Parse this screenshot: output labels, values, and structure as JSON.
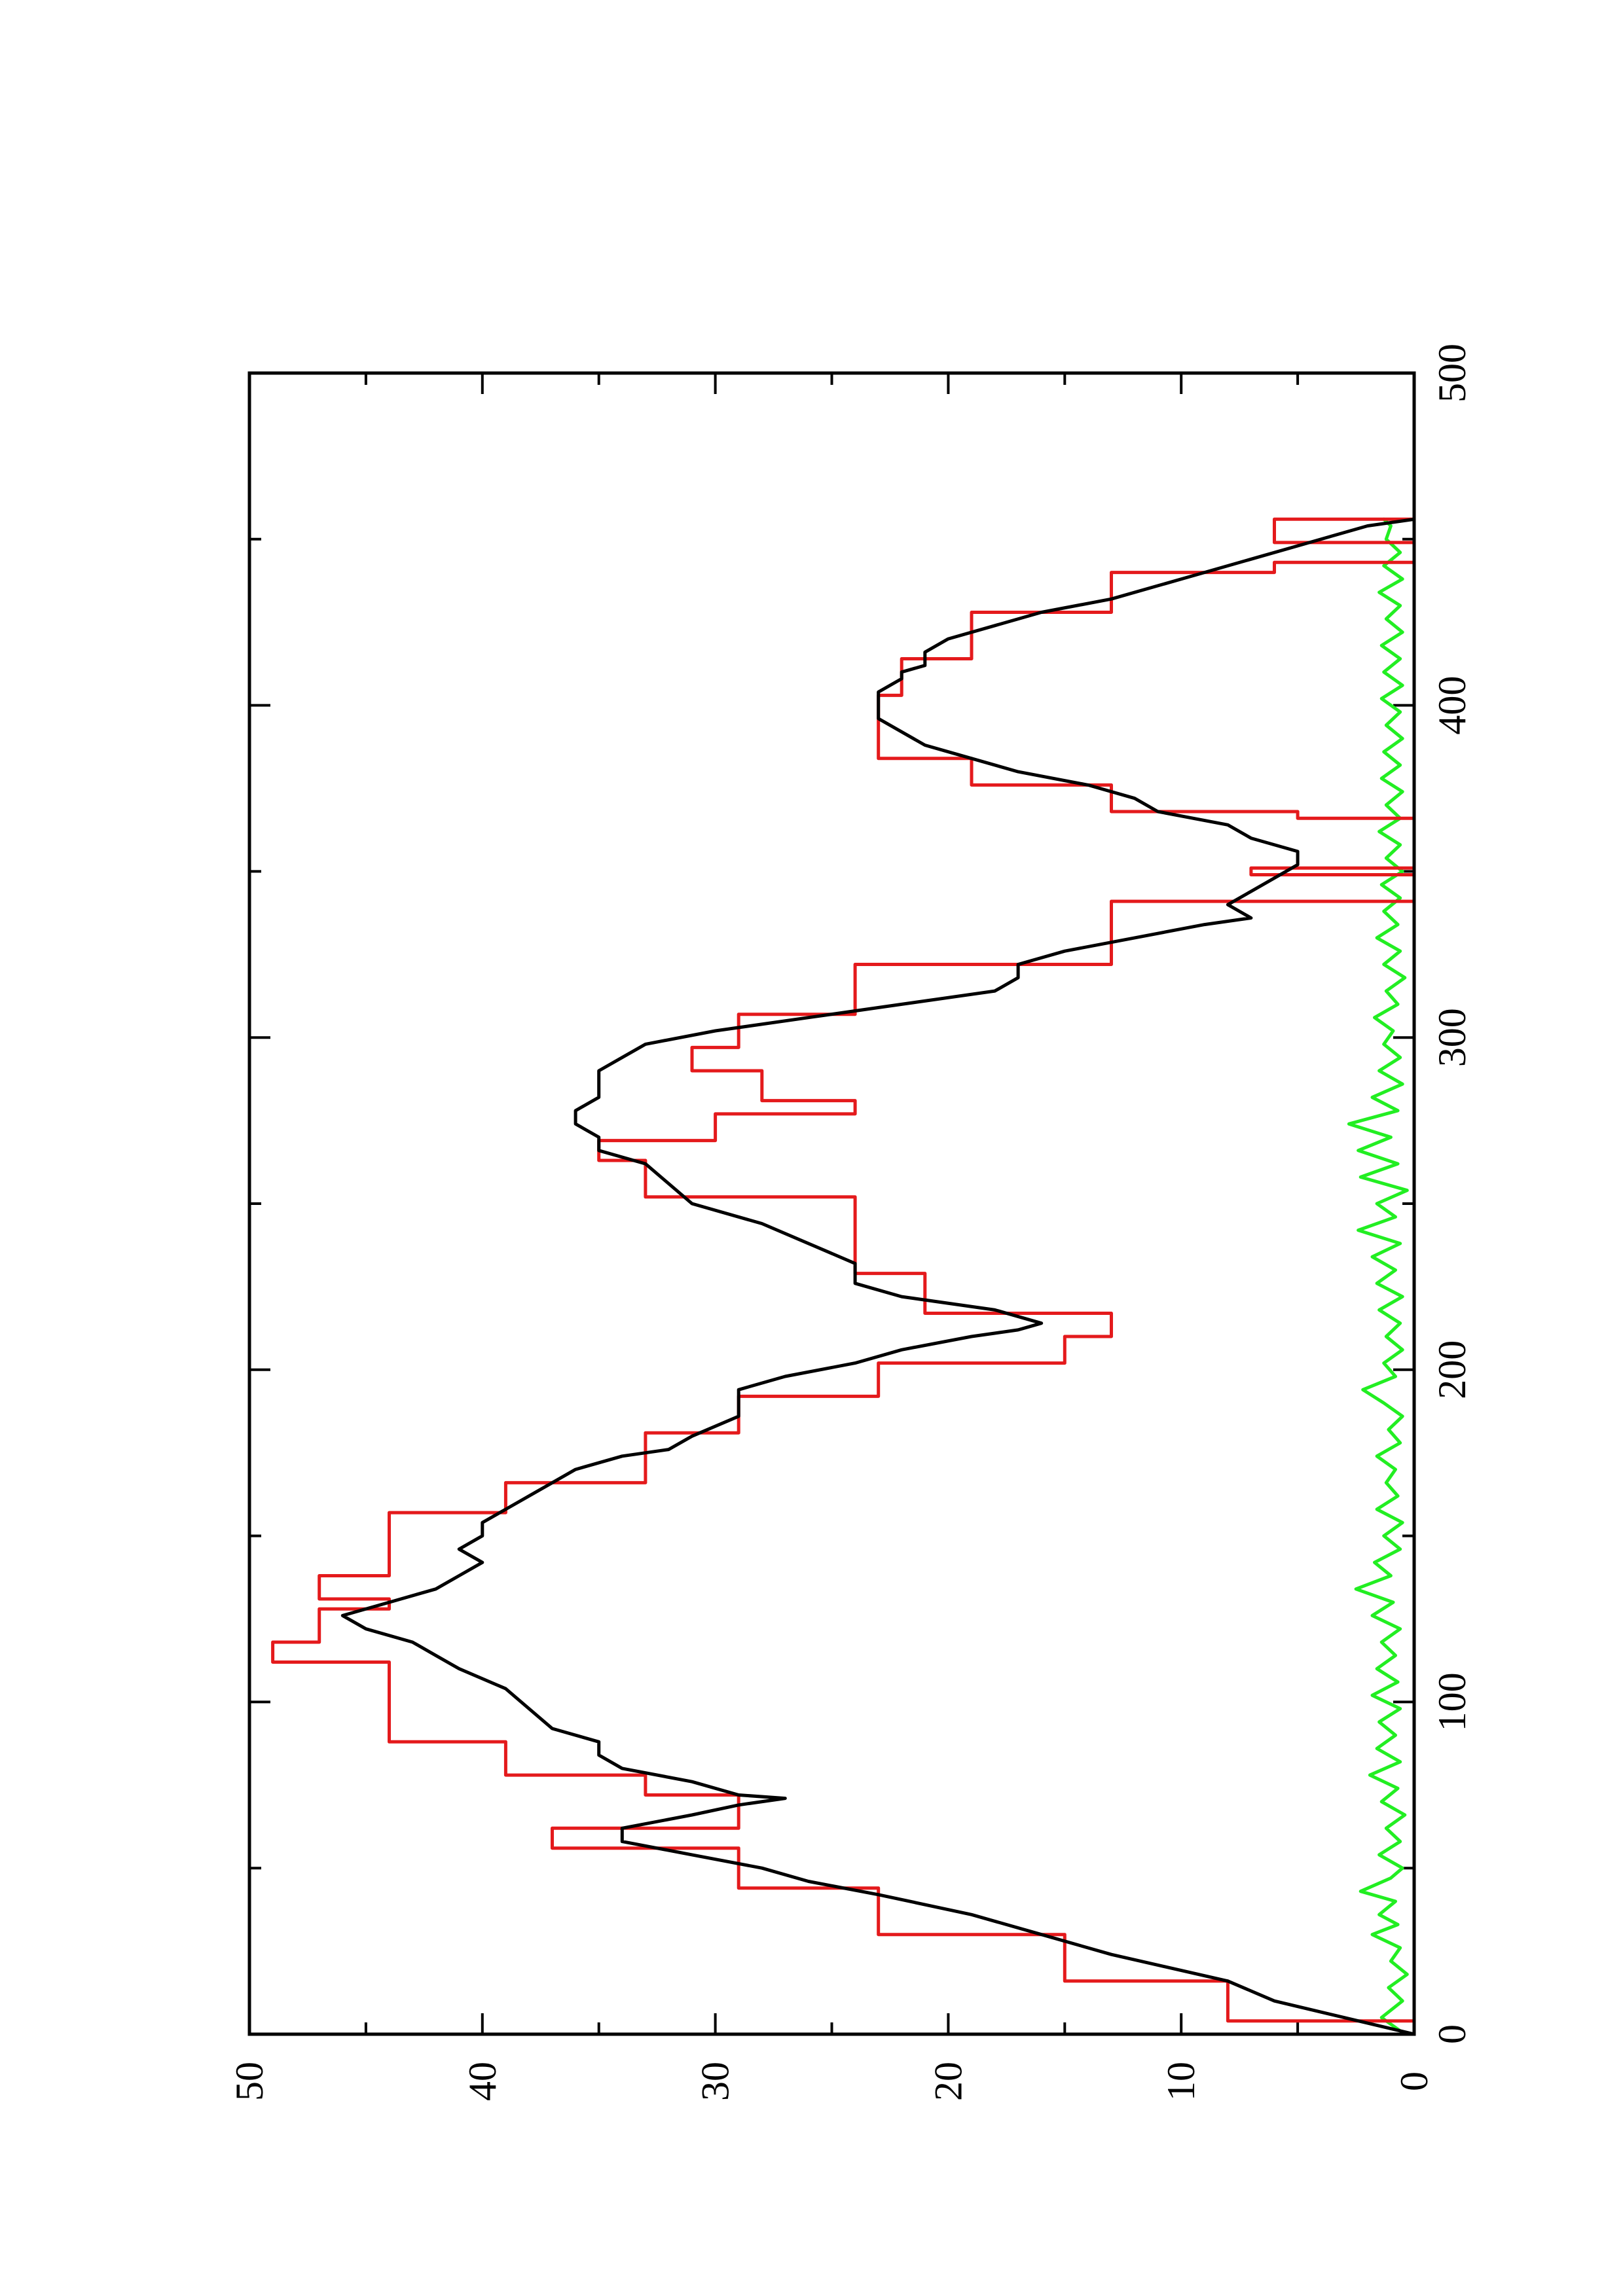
{
  "chart_data": {
    "type": "line",
    "orientation": "rotated-90-ccw",
    "title": "",
    "xlabel": "",
    "ylabel": "",
    "xlim": [
      0,
      500
    ],
    "ylim": [
      0,
      50
    ],
    "x_ticks": [
      0,
      100,
      200,
      300,
      400,
      500
    ],
    "y_ticks": [
      0,
      10,
      20,
      30,
      40,
      50
    ],
    "x_minor_step": 50,
    "y_minor_step": 5,
    "grid": false,
    "legend": "none",
    "series": [
      {
        "color": "#e41a1c",
        "style": "step",
        "points": [
          [
            0,
            0
          ],
          [
            4,
            0
          ],
          [
            4,
            8
          ],
          [
            16,
            8
          ],
          [
            16,
            15
          ],
          [
            30,
            15
          ],
          [
            30,
            23
          ],
          [
            44,
            23
          ],
          [
            44,
            29
          ],
          [
            56,
            29
          ],
          [
            56,
            37
          ],
          [
            62,
            37
          ],
          [
            62,
            29
          ],
          [
            72,
            29
          ],
          [
            72,
            33
          ],
          [
            78,
            33
          ],
          [
            78,
            39
          ],
          [
            88,
            39
          ],
          [
            88,
            44
          ],
          [
            112,
            44
          ],
          [
            112,
            49
          ],
          [
            118,
            49
          ],
          [
            118,
            47
          ],
          [
            128,
            47
          ],
          [
            128,
            44
          ],
          [
            131,
            44
          ],
          [
            131,
            47
          ],
          [
            138,
            47
          ],
          [
            138,
            44
          ],
          [
            157,
            44
          ],
          [
            157,
            39
          ],
          [
            166,
            39
          ],
          [
            166,
            33
          ],
          [
            181,
            33
          ],
          [
            181,
            29
          ],
          [
            192,
            29
          ],
          [
            192,
            23
          ],
          [
            202,
            23
          ],
          [
            202,
            15
          ],
          [
            210,
            15
          ],
          [
            210,
            13
          ],
          [
            217,
            13
          ],
          [
            217,
            21
          ],
          [
            229,
            21
          ],
          [
            229,
            24
          ],
          [
            252,
            24
          ],
          [
            252,
            33
          ],
          [
            263,
            33
          ],
          [
            263,
            35
          ],
          [
            269,
            35
          ],
          [
            269,
            30
          ],
          [
            277,
            30
          ],
          [
            277,
            24
          ],
          [
            281,
            24
          ],
          [
            281,
            28
          ],
          [
            290,
            28
          ],
          [
            290,
            31
          ],
          [
            297,
            31
          ],
          [
            297,
            29
          ],
          [
            307,
            29
          ],
          [
            307,
            24
          ],
          [
            322,
            24
          ],
          [
            322,
            13
          ],
          [
            341,
            13
          ],
          [
            341,
            0
          ],
          [
            349,
            0
          ],
          [
            349,
            7
          ],
          [
            351,
            7
          ],
          [
            351,
            0
          ],
          [
            366,
            0
          ],
          [
            366,
            5
          ],
          [
            368,
            5
          ],
          [
            368,
            13
          ],
          [
            376,
            13
          ],
          [
            376,
            19
          ],
          [
            384,
            19
          ],
          [
            384,
            23
          ],
          [
            403,
            23
          ],
          [
            403,
            22
          ],
          [
            414,
            22
          ],
          [
            414,
            19
          ],
          [
            428,
            19
          ],
          [
            428,
            13
          ],
          [
            440,
            13
          ],
          [
            440,
            6
          ],
          [
            443,
            6
          ],
          [
            443,
            0
          ],
          [
            449,
            0
          ],
          [
            449,
            6
          ],
          [
            456,
            6
          ],
          [
            456,
            0
          ]
        ]
      },
      {
        "color": "#000000",
        "style": "line",
        "points": [
          [
            0,
            0
          ],
          [
            10,
            6
          ],
          [
            16,
            8
          ],
          [
            24,
            13
          ],
          [
            30,
            16
          ],
          [
            36,
            19
          ],
          [
            42,
            23
          ],
          [
            46,
            26
          ],
          [
            50,
            28
          ],
          [
            54,
            31
          ],
          [
            58,
            34
          ],
          [
            62,
            34
          ],
          [
            66,
            31
          ],
          [
            69,
            29
          ],
          [
            71,
            27
          ],
          [
            72,
            29
          ],
          [
            76,
            31
          ],
          [
            80,
            34
          ],
          [
            84,
            35
          ],
          [
            88,
            35
          ],
          [
            92,
            37
          ],
          [
            98,
            38
          ],
          [
            104,
            39
          ],
          [
            110,
            41
          ],
          [
            114,
            42
          ],
          [
            118,
            43
          ],
          [
            122,
            45
          ],
          [
            126,
            46
          ],
          [
            130,
            44
          ],
          [
            134,
            42
          ],
          [
            138,
            41
          ],
          [
            142,
            40
          ],
          [
            146,
            41
          ],
          [
            150,
            40
          ],
          [
            154,
            40
          ],
          [
            158,
            39
          ],
          [
            162,
            38
          ],
          [
            166,
            37
          ],
          [
            170,
            36
          ],
          [
            174,
            34
          ],
          [
            176,
            32
          ],
          [
            180,
            31
          ],
          [
            186,
            29
          ],
          [
            190,
            29
          ],
          [
            194,
            29
          ],
          [
            198,
            27
          ],
          [
            202,
            24
          ],
          [
            206,
            22
          ],
          [
            210,
            19
          ],
          [
            212,
            17
          ],
          [
            214,
            16
          ],
          [
            218,
            18
          ],
          [
            222,
            22
          ],
          [
            226,
            24
          ],
          [
            232,
            24
          ],
          [
            238,
            26
          ],
          [
            244,
            28
          ],
          [
            250,
            31
          ],
          [
            256,
            32
          ],
          [
            262,
            33
          ],
          [
            266,
            35
          ],
          [
            270,
            35
          ],
          [
            274,
            36
          ],
          [
            278,
            36
          ],
          [
            282,
            35
          ],
          [
            286,
            35
          ],
          [
            290,
            35
          ],
          [
            294,
            34
          ],
          [
            298,
            33
          ],
          [
            302,
            30
          ],
          [
            306,
            26
          ],
          [
            310,
            22
          ],
          [
            314,
            18
          ],
          [
            318,
            17
          ],
          [
            322,
            17
          ],
          [
            326,
            15
          ],
          [
            330,
            12
          ],
          [
            334,
            9
          ],
          [
            336,
            7
          ],
          [
            340,
            8
          ],
          [
            344,
            7
          ],
          [
            348,
            6
          ],
          [
            352,
            5
          ],
          [
            356,
            5
          ],
          [
            360,
            7
          ],
          [
            364,
            8
          ],
          [
            368,
            11
          ],
          [
            372,
            12
          ],
          [
            376,
            14
          ],
          [
            380,
            17
          ],
          [
            384,
            19
          ],
          [
            388,
            21
          ],
          [
            392,
            22
          ],
          [
            396,
            23
          ],
          [
            400,
            23
          ],
          [
            404,
            23
          ],
          [
            408,
            22
          ],
          [
            410,
            22
          ],
          [
            412,
            21
          ],
          [
            416,
            21
          ],
          [
            420,
            20
          ],
          [
            424,
            18
          ],
          [
            428,
            16
          ],
          [
            432,
            13
          ],
          [
            436,
            11
          ],
          [
            440,
            9
          ],
          [
            444,
            7
          ],
          [
            448,
            5
          ],
          [
            452,
            3
          ],
          [
            454,
            2
          ],
          [
            456,
            0
          ]
        ]
      },
      {
        "color": "#22ee22",
        "style": "line",
        "points": [
          [
            0,
            0.4
          ],
          [
            5,
            1.4
          ],
          [
            10,
            0.5
          ],
          [
            14,
            1.1
          ],
          [
            18,
            0.3
          ],
          [
            22,
            1.0
          ],
          [
            26,
            0.6
          ],
          [
            30,
            1.8
          ],
          [
            33,
            0.7
          ],
          [
            36,
            1.5
          ],
          [
            40,
            0.8
          ],
          [
            43,
            2.3
          ],
          [
            47,
            1.0
          ],
          [
            50,
            0.5
          ],
          [
            54,
            1.5
          ],
          [
            58,
            0.6
          ],
          [
            62,
            1.2
          ],
          [
            66,
            0.4
          ],
          [
            70,
            1.4
          ],
          [
            74,
            0.7
          ],
          [
            78,
            1.9
          ],
          [
            82,
            0.6
          ],
          [
            86,
            1.6
          ],
          [
            90,
            0.8
          ],
          [
            94,
            1.5
          ],
          [
            98,
            0.6
          ],
          [
            102,
            1.8
          ],
          [
            106,
            0.7
          ],
          [
            110,
            1.6
          ],
          [
            114,
            0.8
          ],
          [
            118,
            1.4
          ],
          [
            122,
            0.6
          ],
          [
            126,
            1.8
          ],
          [
            130,
            0.9
          ],
          [
            134,
            2.5
          ],
          [
            138,
            1.0
          ],
          [
            142,
            1.7
          ],
          [
            146,
            0.6
          ],
          [
            150,
            1.3
          ],
          [
            154,
            0.5
          ],
          [
            158,
            1.6
          ],
          [
            162,
            0.7
          ],
          [
            166,
            1.2
          ],
          [
            170,
            0.8
          ],
          [
            174,
            1.6
          ],
          [
            178,
            0.6
          ],
          [
            182,
            1.1
          ],
          [
            186,
            0.5
          ],
          [
            190,
            1.3
          ],
          [
            194,
            2.2
          ],
          [
            198,
            0.8
          ],
          [
            202,
            1.3
          ],
          [
            206,
            0.5
          ],
          [
            210,
            1.2
          ],
          [
            214,
            0.6
          ],
          [
            218,
            1.5
          ],
          [
            222,
            0.5
          ],
          [
            226,
            1.6
          ],
          [
            230,
            0.8
          ],
          [
            234,
            1.8
          ],
          [
            238,
            0.6
          ],
          [
            242,
            2.4
          ],
          [
            246,
            0.8
          ],
          [
            250,
            1.6
          ],
          [
            254,
            0.3
          ],
          [
            258,
            2.3
          ],
          [
            262,
            0.7
          ],
          [
            266,
            2.4
          ],
          [
            270,
            1.0
          ],
          [
            274,
            2.8
          ],
          [
            278,
            0.7
          ],
          [
            282,
            1.8
          ],
          [
            286,
            0.5
          ],
          [
            290,
            1.5
          ],
          [
            294,
            0.6
          ],
          [
            298,
            1.3
          ],
          [
            302,
            0.9
          ],
          [
            306,
            1.7
          ],
          [
            310,
            0.7
          ],
          [
            314,
            1.2
          ],
          [
            318,
            0.4
          ],
          [
            322,
            1.3
          ],
          [
            326,
            0.6
          ],
          [
            330,
            1.6
          ],
          [
            334,
            0.7
          ],
          [
            338,
            1.3
          ],
          [
            342,
            0.6
          ],
          [
            346,
            1.4
          ],
          [
            350,
            0.5
          ],
          [
            354,
            1.2
          ],
          [
            358,
            0.6
          ],
          [
            362,
            1.5
          ],
          [
            366,
            0.6
          ],
          [
            370,
            1.2
          ],
          [
            374,
            0.5
          ],
          [
            378,
            1.4
          ],
          [
            382,
            0.6
          ],
          [
            386,
            1.3
          ],
          [
            390,
            0.5
          ],
          [
            394,
            1.2
          ],
          [
            398,
            0.6
          ],
          [
            402,
            1.4
          ],
          [
            406,
            0.5
          ],
          [
            410,
            1.3
          ],
          [
            414,
            0.6
          ],
          [
            418,
            1.4
          ],
          [
            422,
            0.5
          ],
          [
            426,
            1.2
          ],
          [
            430,
            0.6
          ],
          [
            434,
            1.5
          ],
          [
            438,
            0.5
          ],
          [
            442,
            1.3
          ],
          [
            446,
            0.6
          ],
          [
            450,
            1.2
          ],
          [
            454,
            1.0
          ],
          [
            456,
            1.3
          ]
        ]
      }
    ]
  }
}
